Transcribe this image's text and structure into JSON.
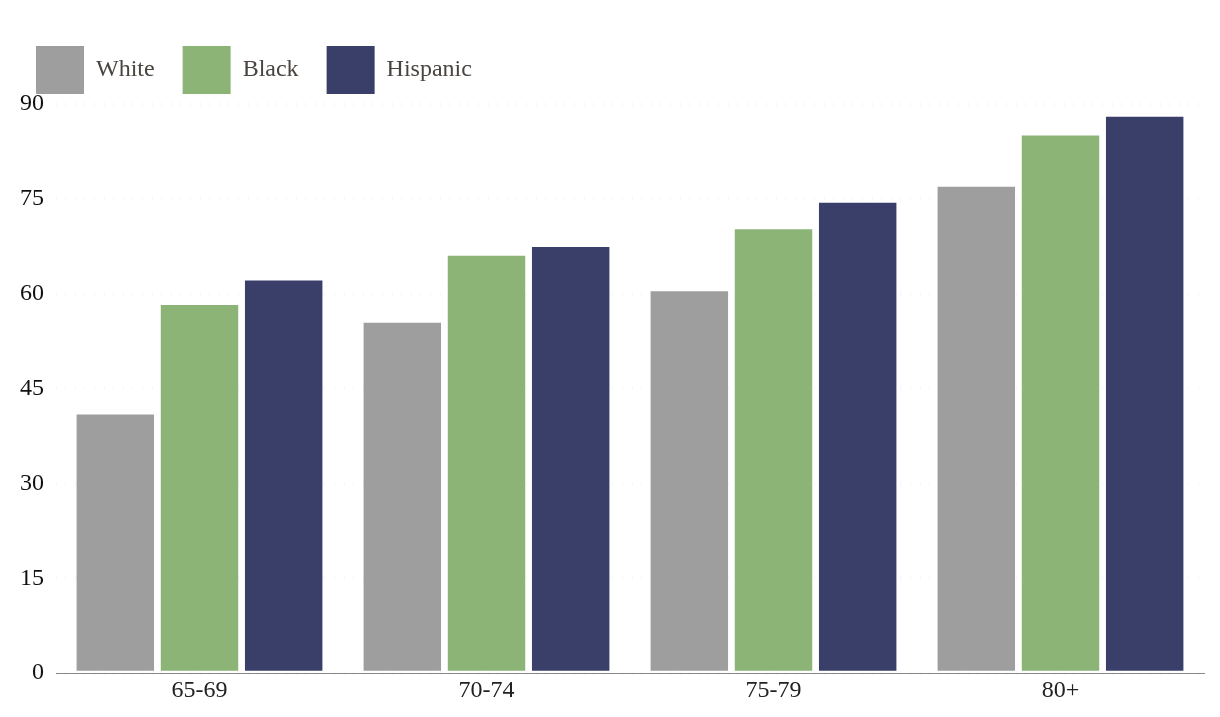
{
  "chart_data": {
    "type": "bar",
    "categories": [
      "65-69",
      "70-74",
      "75-79",
      "80+"
    ],
    "series": [
      {
        "name": "White",
        "color": "#9e9e9e",
        "values": [
          40.9,
          55.4,
          60.4,
          76.9
        ]
      },
      {
        "name": "Black",
        "color": "#8bb476",
        "values": [
          58.2,
          66.0,
          70.2,
          85.0
        ]
      },
      {
        "name": "Hispanic",
        "color": "#3a3f6a",
        "values": [
          62.1,
          67.4,
          74.4,
          88.0
        ]
      }
    ],
    "ylim": [
      0,
      90
    ],
    "yticks": [
      0,
      15,
      30,
      45,
      60,
      75,
      90
    ],
    "grid": "y",
    "line_style": "dotted",
    "legend": "top left"
  }
}
